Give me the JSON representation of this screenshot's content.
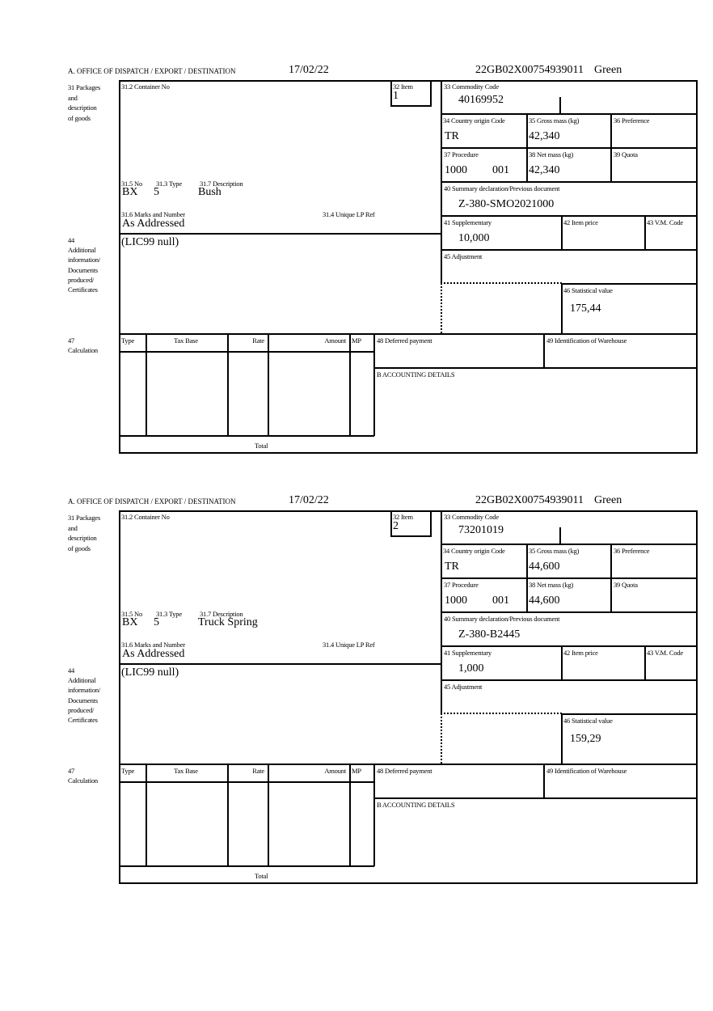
{
  "labels": {
    "office": "A. OFFICE OF DISPATCH / EXPORT / DESTINATION",
    "packages": [
      "31 Packages",
      "and",
      "description",
      "of goods"
    ],
    "container_no": "31.2 Container No",
    "item": "32 Item",
    "commodity_code": "33 Commodity Code",
    "country_origin": "34 Country origin Code",
    "gross_mass": "35 Gross mass (kg)",
    "preference": "36 Preference",
    "procedure": "37 Procedure",
    "net_mass": "38 Net mass (kg)",
    "quota": "39 Quota",
    "summary_declaration": "40 Summary declaration/Previous document",
    "supplementary": "41 Supplementary",
    "item_price": "42 Item price",
    "vm_code": "43 V.M. Code",
    "adjustment": "45 Adjustment",
    "statistical_value": "46 Statistical value",
    "no": "31.5 No",
    "type": "31.3 Type",
    "description": "31.7 Description",
    "marks": "31.6 Marks and Number",
    "unique_lp_ref": "31.4 Unique LP Ref",
    "additional": [
      "44",
      "Additional",
      "information/",
      "Documents",
      "produced/",
      "Certificates"
    ],
    "calculation": [
      "47",
      "Calculation"
    ],
    "calc_headers": [
      "Type",
      "Tax Base",
      "Rate",
      "Amount",
      "MP"
    ],
    "total": "Total",
    "deferred_payment": "48 Deferred payment",
    "warehouse": "49 Identification of Warehouse",
    "accounting": "B ACCOUNTING DETAILS"
  },
  "items": [
    {
      "date": "17/02/22",
      "reference": "22GB02X00754939011",
      "route": "Green",
      "item_no": "1",
      "commodity_code": "40169952",
      "country_origin": "TR",
      "gross_mass": "42,340",
      "procedure": "1000",
      "procedure_additional": "001",
      "net_mass": "42,340",
      "summary_declaration": "Z-380-SMO2021000",
      "supplementary": "10,000",
      "statistical_value": "175,44",
      "package_kind": "BX",
      "package_count": "5",
      "description": "Bush",
      "marks": "As Addressed",
      "additional_info": "(LIC99 null)"
    },
    {
      "date": "17/02/22",
      "reference": "22GB02X00754939011",
      "route": "Green",
      "item_no": "2",
      "commodity_code": "73201019",
      "country_origin": "TR",
      "gross_mass": "44,600",
      "procedure": "1000",
      "procedure_additional": "001",
      "net_mass": "44,600",
      "summary_declaration": "Z-380-B2445",
      "supplementary": "1,000",
      "statistical_value": "159,29",
      "package_kind": "BX",
      "package_count": "5",
      "description": "Truck Spring",
      "marks": "As Addressed",
      "additional_info": "(LIC99 null)"
    }
  ]
}
